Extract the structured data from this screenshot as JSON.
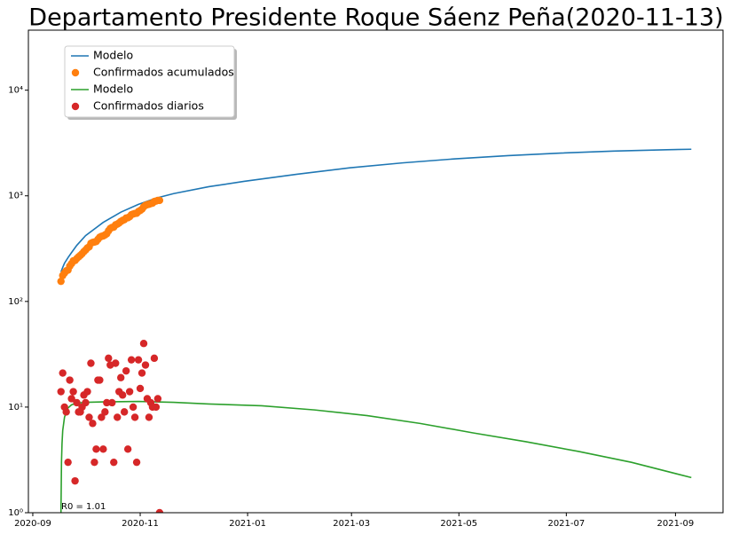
{
  "chart_data": {
    "type": "line",
    "title": "Departamento Presidente Roque Sáenz Peña(2020-11-13)",
    "annotation": "R0 = 1.01",
    "yscale": "log",
    "xlim": [
      -2.5,
      392
    ],
    "ylim": [
      1,
      37000
    ],
    "xticks": [
      {
        "value": 0,
        "label": "2020-09"
      },
      {
        "value": 61,
        "label": "2020-11"
      },
      {
        "value": 122,
        "label": "2021-01"
      },
      {
        "value": 181,
        "label": "2021-03"
      },
      {
        "value": 242,
        "label": "2021-05"
      },
      {
        "value": 303,
        "label": "2021-07"
      },
      {
        "value": 365,
        "label": "2021-09"
      }
    ],
    "yticks": [
      {
        "value": 1,
        "label": "10⁰"
      },
      {
        "value": 10,
        "label": "10¹"
      },
      {
        "value": 100,
        "label": "10²"
      },
      {
        "value": 1000,
        "label": "10³"
      },
      {
        "value": 10000,
        "label": "10⁴"
      }
    ],
    "legend": "upper left",
    "series": [
      {
        "name": "Modelo",
        "color": "#1f77b4",
        "style": "line",
        "x": [
          16,
          17,
          18,
          20,
          22,
          25,
          30,
          40,
          50,
          60,
          70,
          80,
          100,
          120,
          150,
          180,
          210,
          240,
          270,
          300,
          330,
          360,
          374
        ],
        "values": [
          190,
          210,
          230,
          260,
          290,
          340,
          420,
          560,
          700,
          830,
          950,
          1050,
          1220,
          1370,
          1600,
          1840,
          2050,
          2240,
          2400,
          2540,
          2650,
          2730,
          2760
        ]
      },
      {
        "name": "Confirmados acumulados",
        "color": "#ff7f0e",
        "style": "markers",
        "x": [
          16,
          17,
          18,
          19,
          20,
          21,
          22,
          23,
          24,
          25,
          26,
          27,
          28,
          29,
          30,
          31,
          32,
          33,
          34,
          35,
          36,
          37,
          38,
          39,
          40,
          41,
          42,
          43,
          44,
          45,
          46,
          47,
          48,
          49,
          50,
          51,
          52,
          53,
          54,
          55,
          56,
          57,
          58,
          59,
          60,
          61,
          62,
          63,
          64,
          65,
          66,
          67,
          68,
          69,
          70,
          71,
          72
        ],
        "values": [
          155,
          176,
          186,
          195,
          198,
          216,
          228,
          242,
          244,
          255,
          264,
          273,
          283,
          296,
          307,
          321,
          329,
          355,
          362,
          365,
          369,
          387,
          405,
          413,
          417,
          426,
          437,
          466,
          491,
          502,
          505,
          531,
          539,
          553,
          572,
          585,
          594,
          616,
          620,
          634,
          662,
          672,
          680,
          683,
          711,
          726,
          747,
          787,
          812,
          824,
          832,
          843,
          853,
          882,
          892,
          904,
          905
        ]
      },
      {
        "name": "Modelo",
        "color": "#2ca02c",
        "style": "line",
        "x": [
          16,
          16.3,
          16.6,
          17,
          18,
          19,
          20,
          22,
          25,
          30,
          40,
          60,
          80,
          100,
          130,
          160,
          190,
          220,
          250,
          280,
          310,
          340,
          374
        ],
        "values": [
          1,
          3,
          4.5,
          6,
          8,
          9,
          9.8,
          10.5,
          10.9,
          11.1,
          11.2,
          11.3,
          11.1,
          10.7,
          10.3,
          9.4,
          8.3,
          7.0,
          5.7,
          4.7,
          3.8,
          3.0,
          2.15
        ]
      },
      {
        "name": "Confirmados diarios",
        "color": "#d62728",
        "style": "markers",
        "x": [
          16,
          17,
          18,
          19,
          20,
          21,
          22,
          23,
          24,
          25,
          26,
          27,
          28,
          29,
          30,
          31,
          32,
          33,
          34,
          35,
          36,
          37,
          38,
          39,
          40,
          41,
          42,
          43,
          44,
          45,
          46,
          47,
          48,
          49,
          50,
          51,
          52,
          53,
          54,
          55,
          56,
          57,
          58,
          59,
          60,
          61,
          62,
          63,
          64,
          65,
          66,
          67,
          68,
          69,
          70,
          71,
          72
        ],
        "values": [
          14,
          21,
          10,
          9,
          3,
          18,
          12,
          14,
          2,
          11,
          9,
          9,
          10,
          13,
          11,
          14,
          8,
          26,
          7,
          3,
          4,
          18,
          18,
          8,
          4,
          9,
          11,
          29,
          25,
          11,
          3,
          26,
          8,
          14,
          19,
          13,
          9,
          22,
          4,
          14,
          28,
          10,
          8,
          3,
          28,
          15,
          21,
          40,
          25,
          12,
          8,
          11,
          10,
          29,
          10,
          12,
          1
        ]
      }
    ]
  }
}
